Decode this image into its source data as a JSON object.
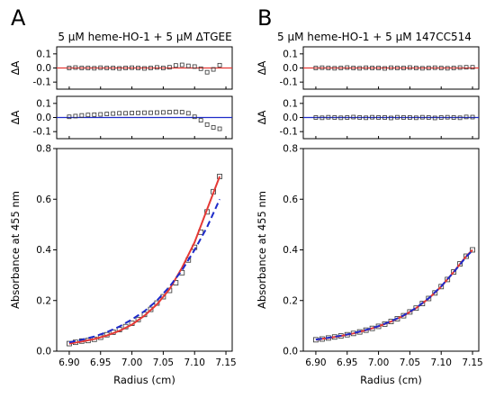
{
  "figure": {
    "panels": [
      {
        "letter": "A",
        "title": "5 μM heme-HO-1 + 5 μM ΔTGEE"
      },
      {
        "letter": "B",
        "title": "5 μM heme-HO-1 + 5 μM 147CC514"
      }
    ]
  },
  "chart_data": [
    {
      "panel": "A",
      "type": "scatter",
      "role": "residuals-top",
      "ylabel": "ΔA",
      "xlim": [
        6.88,
        7.16
      ],
      "ylim": [
        -0.15,
        0.15
      ],
      "yticks": [
        -0.1,
        0.0,
        0.1
      ],
      "ytick_labels": [
        "-0.1",
        "0.0",
        "0.1"
      ],
      "reference_line": {
        "y": 0,
        "color": "#e53935"
      },
      "x": [
        6.9,
        6.91,
        6.92,
        6.93,
        6.94,
        6.95,
        6.96,
        6.97,
        6.98,
        6.99,
        7.0,
        7.01,
        7.02,
        7.03,
        7.04,
        7.05,
        7.06,
        7.07,
        7.08,
        7.09,
        7.1,
        7.11,
        7.12,
        7.13,
        7.14
      ],
      "y": [
        0.0,
        0.003,
        0.0,
        0.0,
        -0.002,
        0.002,
        0.0,
        0.0,
        -0.003,
        0.0,
        0.002,
        0.0,
        -0.003,
        0.0,
        0.004,
        0.0,
        0.005,
        0.018,
        0.022,
        0.015,
        0.01,
        -0.005,
        -0.03,
        -0.01,
        0.02
      ]
    },
    {
      "panel": "A",
      "type": "scatter",
      "role": "residuals-bottom",
      "ylabel": "ΔA",
      "xlim": [
        6.88,
        7.16
      ],
      "ylim": [
        -0.15,
        0.15
      ],
      "yticks": [
        -0.1,
        0.0,
        0.1
      ],
      "ytick_labels": [
        "-0.1",
        "0.0",
        "0.1"
      ],
      "reference_line": {
        "y": 0,
        "color": "#1e2bc9"
      },
      "x": [
        6.9,
        6.91,
        6.92,
        6.93,
        6.94,
        6.95,
        6.96,
        6.97,
        6.98,
        6.99,
        7.0,
        7.01,
        7.02,
        7.03,
        7.04,
        7.05,
        7.06,
        7.07,
        7.08,
        7.09,
        7.1,
        7.11,
        7.12,
        7.13,
        7.14
      ],
      "y": [
        0.005,
        0.01,
        0.015,
        0.018,
        0.02,
        0.022,
        0.025,
        0.028,
        0.03,
        0.03,
        0.032,
        0.033,
        0.034,
        0.034,
        0.035,
        0.036,
        0.038,
        0.04,
        0.038,
        0.03,
        0.005,
        -0.02,
        -0.05,
        -0.07,
        -0.08
      ]
    },
    {
      "panel": "A",
      "type": "scatter",
      "role": "main",
      "xlabel": "Radius (cm)",
      "ylabel": "Absorbance at 455 nm",
      "xlim": [
        6.88,
        7.16
      ],
      "ylim": [
        0.0,
        0.8
      ],
      "xticks": [
        6.9,
        6.95,
        7.0,
        7.05,
        7.1,
        7.15
      ],
      "xtick_labels": [
        "6.90",
        "6.95",
        "7.00",
        "7.05",
        "7.10",
        "7.15"
      ],
      "yticks": [
        0.0,
        0.2,
        0.4,
        0.6,
        0.8
      ],
      "ytick_labels": [
        "0.0",
        "0.2",
        "0.4",
        "0.6",
        "0.8"
      ],
      "series": [
        {
          "kind": "points",
          "color": "#333333",
          "x": [
            6.9,
            6.91,
            6.92,
            6.93,
            6.94,
            6.95,
            6.96,
            6.97,
            6.98,
            6.99,
            7.0,
            7.01,
            7.02,
            7.03,
            7.04,
            7.05,
            7.06,
            7.07,
            7.08,
            7.09,
            7.1,
            7.11,
            7.12,
            7.13,
            7.14
          ],
          "y": [
            0.03,
            0.035,
            0.04,
            0.042,
            0.047,
            0.055,
            0.065,
            0.075,
            0.085,
            0.097,
            0.11,
            0.125,
            0.145,
            0.165,
            0.19,
            0.215,
            0.24,
            0.27,
            0.31,
            0.36,
            0.41,
            0.47,
            0.55,
            0.63,
            0.69
          ]
        },
        {
          "kind": "fit",
          "color": "#e53935",
          "style": "solid",
          "x": [
            6.9,
            6.92,
            6.94,
            6.96,
            6.98,
            7.0,
            7.02,
            7.04,
            7.06,
            7.08,
            7.1,
            7.12,
            7.14
          ],
          "y": [
            0.03,
            0.038,
            0.048,
            0.062,
            0.08,
            0.105,
            0.14,
            0.185,
            0.245,
            0.33,
            0.43,
            0.56,
            0.69
          ]
        },
        {
          "kind": "fit",
          "color": "#1e2bc9",
          "style": "dashed",
          "x": [
            6.9,
            6.92,
            6.94,
            6.96,
            6.98,
            7.0,
            7.02,
            7.04,
            7.06,
            7.08,
            7.1,
            7.12,
            7.14
          ],
          "y": [
            0.035,
            0.045,
            0.058,
            0.075,
            0.097,
            0.125,
            0.158,
            0.2,
            0.255,
            0.32,
            0.4,
            0.49,
            0.6
          ]
        }
      ]
    },
    {
      "panel": "B",
      "type": "scatter",
      "role": "residuals-top",
      "ylabel": "ΔA",
      "xlim": [
        6.88,
        7.16
      ],
      "ylim": [
        -0.15,
        0.15
      ],
      "yticks": [
        -0.1,
        0.0,
        0.1
      ],
      "ytick_labels": [
        "-0.1",
        "0.0",
        "0.1"
      ],
      "reference_line": {
        "y": 0,
        "color": "#e53935"
      },
      "x": [
        6.9,
        6.91,
        6.92,
        6.93,
        6.94,
        6.95,
        6.96,
        6.97,
        6.98,
        6.99,
        7.0,
        7.01,
        7.02,
        7.03,
        7.04,
        7.05,
        7.06,
        7.07,
        7.08,
        7.09,
        7.1,
        7.11,
        7.12,
        7.13,
        7.14,
        7.15
      ],
      "y": [
        0.0,
        0.002,
        0.0,
        -0.002,
        0.0,
        0.003,
        0.0,
        -0.002,
        0.002,
        0.0,
        0.0,
        -0.003,
        0.002,
        0.0,
        0.0,
        0.003,
        0.0,
        -0.002,
        0.0,
        0.002,
        0.0,
        -0.002,
        0.0,
        0.003,
        0.005,
        0.005
      ]
    },
    {
      "panel": "B",
      "type": "scatter",
      "role": "residuals-bottom",
      "ylabel": "ΔA",
      "xlim": [
        6.88,
        7.16
      ],
      "ylim": [
        -0.15,
        0.15
      ],
      "yticks": [
        -0.1,
        0.0,
        0.1
      ],
      "ytick_labels": [
        "-0.1",
        "0.0",
        "0.1"
      ],
      "reference_line": {
        "y": 0,
        "color": "#1e2bc9"
      },
      "x": [
        6.9,
        6.91,
        6.92,
        6.93,
        6.94,
        6.95,
        6.96,
        6.97,
        6.98,
        6.99,
        7.0,
        7.01,
        7.02,
        7.03,
        7.04,
        7.05,
        7.06,
        7.07,
        7.08,
        7.09,
        7.1,
        7.11,
        7.12,
        7.13,
        7.14,
        7.15
      ],
      "y": [
        0.0,
        -0.002,
        0.002,
        0.0,
        -0.002,
        0.0,
        0.003,
        0.0,
        -0.002,
        0.002,
        0.0,
        0.0,
        -0.003,
        0.002,
        0.0,
        0.0,
        -0.002,
        0.002,
        0.0,
        -0.003,
        0.0,
        0.002,
        0.0,
        -0.002,
        0.004,
        0.003
      ]
    },
    {
      "panel": "B",
      "type": "scatter",
      "role": "main",
      "xlabel": "Radius (cm)",
      "ylabel": "Absorbance at 455 nm",
      "xlim": [
        6.88,
        7.16
      ],
      "ylim": [
        0.0,
        0.8
      ],
      "xticks": [
        6.9,
        6.95,
        7.0,
        7.05,
        7.1,
        7.15
      ],
      "xtick_labels": [
        "6.90",
        "6.95",
        "7.00",
        "7.05",
        "7.10",
        "7.15"
      ],
      "yticks": [
        0.0,
        0.2,
        0.4,
        0.6,
        0.8
      ],
      "ytick_labels": [
        "0.0",
        "0.2",
        "0.4",
        "0.6",
        "0.8"
      ],
      "series": [
        {
          "kind": "points",
          "color": "#333333",
          "x": [
            6.9,
            6.91,
            6.92,
            6.93,
            6.94,
            6.95,
            6.96,
            6.97,
            6.98,
            6.99,
            7.0,
            7.01,
            7.02,
            7.03,
            7.04,
            7.05,
            7.06,
            7.07,
            7.08,
            7.09,
            7.1,
            7.11,
            7.12,
            7.13,
            7.14,
            7.15
          ],
          "y": [
            0.045,
            0.048,
            0.052,
            0.056,
            0.06,
            0.065,
            0.07,
            0.076,
            0.083,
            0.09,
            0.098,
            0.107,
            0.117,
            0.128,
            0.14,
            0.155,
            0.17,
            0.188,
            0.208,
            0.23,
            0.255,
            0.283,
            0.313,
            0.345,
            0.375,
            0.4
          ]
        },
        {
          "kind": "fit",
          "color": "#e53935",
          "style": "solid",
          "x": [
            6.9,
            6.92,
            6.94,
            6.96,
            6.98,
            7.0,
            7.02,
            7.04,
            7.06,
            7.08,
            7.1,
            7.12,
            7.14,
            7.15
          ],
          "y": [
            0.045,
            0.052,
            0.06,
            0.07,
            0.083,
            0.098,
            0.117,
            0.14,
            0.17,
            0.208,
            0.255,
            0.313,
            0.375,
            0.4
          ]
        },
        {
          "kind": "fit",
          "color": "#1e2bc9",
          "style": "dashed",
          "x": [
            6.9,
            6.92,
            6.94,
            6.96,
            6.98,
            7.0,
            7.02,
            7.04,
            7.06,
            7.08,
            7.1,
            7.12,
            7.14,
            7.15
          ],
          "y": [
            0.046,
            0.053,
            0.061,
            0.071,
            0.084,
            0.099,
            0.118,
            0.141,
            0.171,
            0.209,
            0.256,
            0.312,
            0.373,
            0.398
          ]
        }
      ]
    }
  ]
}
